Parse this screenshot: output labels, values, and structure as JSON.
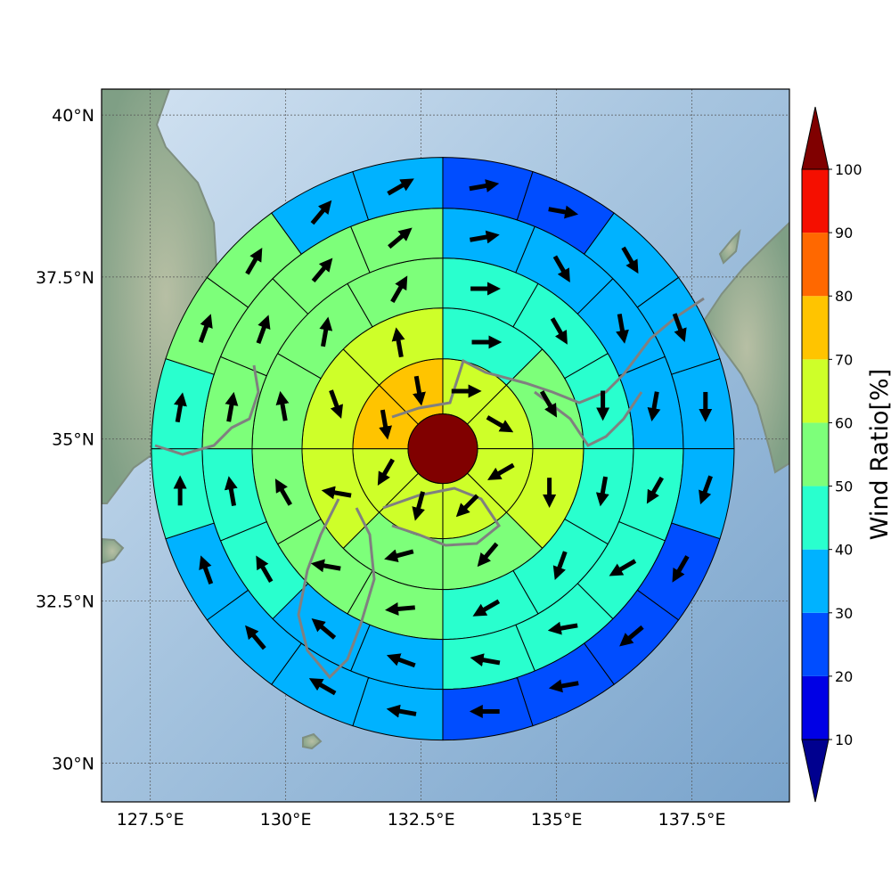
{
  "chart_data": {
    "type": "polar-sector-map",
    "map": {
      "lon_range": [
        126.6,
        139.3
      ],
      "lat_range": [
        29.4,
        40.4
      ],
      "x_ticks": [
        127.5,
        130,
        132.5,
        135,
        137.5
      ],
      "y_ticks": [
        30,
        32.5,
        35,
        37.5,
        40
      ],
      "x_tick_labels": [
        "127.5°E",
        "130°E",
        "132.5°E",
        "135°E",
        "137.5°E"
      ],
      "y_tick_labels": [
        "30°N",
        "32.5°N",
        "35°N",
        "37.5°N",
        "40°N"
      ],
      "grid": true
    },
    "center": {
      "lon": 132.9,
      "lat": 34.85
    },
    "rings": [
      {
        "ring": 1,
        "sectors": 8,
        "values": [
          65,
          65,
          65,
          65,
          65,
          65,
          75,
          75
        ],
        "arrow_dirs": [
          90,
          120,
          240,
          225,
          195,
          210,
          170,
          170
        ]
      },
      {
        "ring": 2,
        "sectors": 8,
        "values": [
          45,
          55,
          65,
          55,
          55,
          65,
          65,
          65
        ],
        "arrow_dirs": [
          90,
          150,
          180,
          220,
          255,
          280,
          160,
          350
        ]
      },
      {
        "ring": 3,
        "sectors": 12,
        "values": [
          45,
          45,
          45,
          45,
          45,
          45,
          55,
          55,
          55,
          55,
          55,
          55
        ],
        "arrow_dirs": [
          90,
          150,
          180,
          190,
          200,
          240,
          265,
          280,
          330,
          350,
          10,
          30
        ]
      },
      {
        "ring": 4,
        "sectors": 16,
        "values": [
          35,
          35,
          35,
          35,
          45,
          45,
          45,
          45,
          35,
          35,
          45,
          45,
          55,
          55,
          55,
          55
        ],
        "arrow_dirs": [
          80,
          150,
          170,
          190,
          210,
          240,
          260,
          280,
          290,
          310,
          330,
          350,
          10,
          20,
          40,
          50
        ]
      },
      {
        "ring": 5,
        "sectors": 20,
        "values": [
          25,
          25,
          35,
          35,
          35,
          35,
          25,
          25,
          25,
          25,
          35,
          35,
          35,
          35,
          45,
          45,
          55,
          55,
          35,
          35
        ],
        "arrow_dirs": [
          80,
          100,
          150,
          160,
          180,
          200,
          210,
          230,
          260,
          270,
          280,
          300,
          320,
          340,
          0,
          10,
          20,
          30,
          40,
          60
        ]
      }
    ],
    "center_value": 100,
    "colorbar": {
      "label": "Wind Ratio[%]",
      "ticks": [
        10,
        20,
        30,
        40,
        50,
        60,
        70,
        80,
        90,
        100
      ],
      "levels": [
        0,
        10,
        20,
        30,
        40,
        50,
        60,
        70,
        80,
        90,
        100
      ],
      "colors": [
        "#00008f",
        "#0000e5",
        "#004dff",
        "#00b2ff",
        "#29ffce",
        "#7dff7a",
        "#ceff29",
        "#ffc400",
        "#ff6800",
        "#f50f00",
        "#800000"
      ],
      "extend": "both"
    },
    "colors": {
      "land": "#8fa88a",
      "sea_light": "#c9dcee",
      "sea_dark": "#7fa8cf",
      "coast": "#808080"
    }
  }
}
